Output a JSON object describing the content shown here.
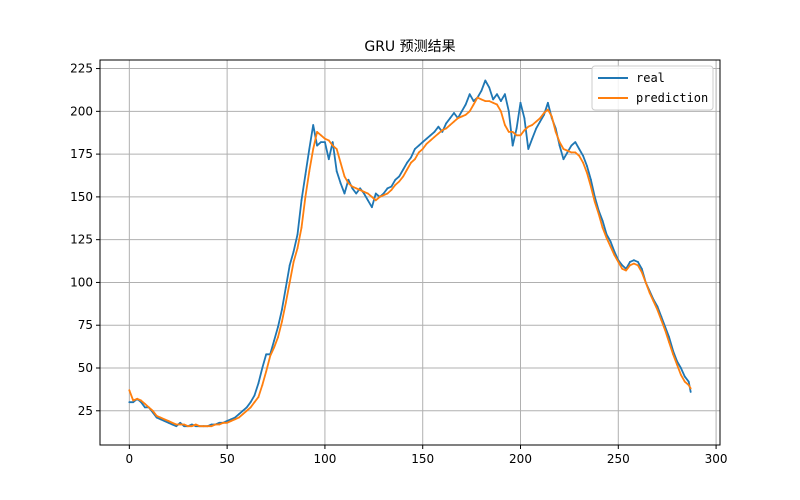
{
  "chart_data": {
    "type": "line",
    "title": "GRU 预测结果",
    "xlabel": "",
    "ylabel": "",
    "xlim": [
      -15,
      302
    ],
    "ylim": [
      5,
      230
    ],
    "xticks": [
      0,
      50,
      100,
      150,
      200,
      250,
      300
    ],
    "yticks": [
      25,
      50,
      75,
      100,
      125,
      150,
      175,
      200,
      225
    ],
    "grid": true,
    "legend_position": "top-right",
    "series": [
      {
        "name": "real",
        "color": "#1f77b4",
        "x": [
          0,
          2,
          4,
          6,
          8,
          10,
          12,
          14,
          16,
          18,
          20,
          22,
          24,
          26,
          28,
          30,
          32,
          34,
          36,
          38,
          40,
          42,
          44,
          46,
          48,
          50,
          52,
          54,
          56,
          58,
          60,
          62,
          64,
          66,
          68,
          70,
          72,
          74,
          76,
          78,
          80,
          82,
          84,
          86,
          88,
          90,
          92,
          94,
          96,
          98,
          100,
          102,
          104,
          106,
          108,
          110,
          112,
          114,
          116,
          118,
          120,
          122,
          124,
          126,
          128,
          130,
          132,
          134,
          136,
          138,
          140,
          142,
          144,
          146,
          148,
          150,
          152,
          154,
          156,
          158,
          160,
          162,
          164,
          166,
          168,
          170,
          172,
          174,
          176,
          178,
          180,
          182,
          184,
          186,
          188,
          190,
          192,
          194,
          196,
          198,
          200,
          202,
          204,
          206,
          208,
          210,
          212,
          214,
          216,
          218,
          220,
          222,
          224,
          226,
          228,
          230,
          232,
          234,
          236,
          238,
          240,
          242,
          244,
          246,
          248,
          250,
          252,
          254,
          256,
          258,
          260,
          262,
          264,
          266,
          268,
          270,
          272,
          274,
          276,
          278,
          280,
          282,
          284,
          286,
          287
        ],
        "y": [
          30,
          30,
          32,
          30,
          27,
          27,
          24,
          21,
          20,
          19,
          18,
          17,
          16,
          18,
          16,
          16,
          17,
          16,
          16,
          16,
          16,
          17,
          17,
          18,
          18,
          19,
          20,
          21,
          23,
          25,
          27,
          30,
          34,
          41,
          50,
          58,
          58,
          66,
          74,
          84,
          97,
          110,
          118,
          128,
          148,
          163,
          178,
          192,
          180,
          182,
          182,
          172,
          182,
          165,
          158,
          152,
          160,
          155,
          152,
          155,
          152,
          148,
          144,
          152,
          150,
          152,
          155,
          156,
          160,
          162,
          166,
          170,
          173,
          178,
          180,
          182,
          184,
          186,
          188,
          191,
          188,
          193,
          196,
          199,
          196,
          200,
          204,
          210,
          206,
          208,
          212,
          218,
          214,
          207,
          210,
          206,
          210,
          200,
          180,
          190,
          205,
          196,
          178,
          184,
          190,
          194,
          198,
          205,
          196,
          190,
          180,
          172,
          176,
          180,
          182,
          178,
          174,
          168,
          160,
          150,
          142,
          136,
          128,
          124,
          118,
          113,
          110,
          108,
          112,
          113,
          112,
          108,
          100,
          95,
          90,
          86,
          80,
          74,
          68,
          60,
          54,
          50,
          45,
          42,
          36
        ]
      },
      {
        "name": "prediction",
        "color": "#ff7f0e",
        "x": [
          0,
          2,
          4,
          6,
          8,
          10,
          12,
          14,
          16,
          18,
          20,
          22,
          24,
          26,
          28,
          30,
          32,
          34,
          36,
          38,
          40,
          42,
          44,
          46,
          48,
          50,
          52,
          54,
          56,
          58,
          60,
          62,
          64,
          66,
          68,
          70,
          72,
          74,
          76,
          78,
          80,
          82,
          84,
          86,
          88,
          90,
          92,
          94,
          96,
          98,
          100,
          102,
          104,
          106,
          108,
          110,
          112,
          114,
          116,
          118,
          120,
          122,
          124,
          126,
          128,
          130,
          132,
          134,
          136,
          138,
          140,
          142,
          144,
          146,
          148,
          150,
          152,
          154,
          156,
          158,
          160,
          162,
          164,
          166,
          168,
          170,
          172,
          174,
          176,
          178,
          180,
          182,
          184,
          186,
          188,
          190,
          192,
          194,
          196,
          198,
          200,
          202,
          204,
          206,
          208,
          210,
          212,
          214,
          216,
          218,
          220,
          222,
          224,
          226,
          228,
          230,
          232,
          234,
          236,
          238,
          240,
          242,
          244,
          246,
          248,
          250,
          252,
          254,
          256,
          258,
          260,
          262,
          264,
          266,
          268,
          270,
          272,
          274,
          276,
          278,
          280,
          282,
          284,
          286,
          287
        ],
        "y": [
          37,
          31,
          32,
          31,
          29,
          27,
          25,
          22,
          21,
          20,
          19,
          18,
          17,
          17,
          17,
          16,
          16,
          17,
          16,
          16,
          16,
          16,
          17,
          17,
          18,
          18,
          19,
          20,
          21,
          23,
          25,
          27,
          30,
          33,
          40,
          48,
          57,
          62,
          68,
          77,
          88,
          100,
          112,
          120,
          132,
          150,
          165,
          178,
          188,
          186,
          184,
          183,
          180,
          178,
          170,
          162,
          158,
          156,
          155,
          154,
          153,
          152,
          150,
          148,
          150,
          151,
          152,
          154,
          157,
          159,
          162,
          166,
          170,
          172,
          176,
          178,
          181,
          183,
          185,
          187,
          189,
          190,
          192,
          194,
          196,
          197,
          198,
          200,
          204,
          208,
          207,
          206,
          206,
          205,
          204,
          200,
          192,
          188,
          188,
          186,
          186,
          189,
          191,
          192,
          194,
          196,
          199,
          201,
          197,
          188,
          182,
          178,
          177,
          176,
          176,
          174,
          170,
          164,
          156,
          147,
          140,
          132,
          126,
          121,
          116,
          112,
          108,
          107,
          110,
          111,
          110,
          106,
          100,
          94,
          89,
          84,
          78,
          72,
          65,
          58,
          52,
          46,
          42,
          40,
          38
        ]
      }
    ]
  }
}
